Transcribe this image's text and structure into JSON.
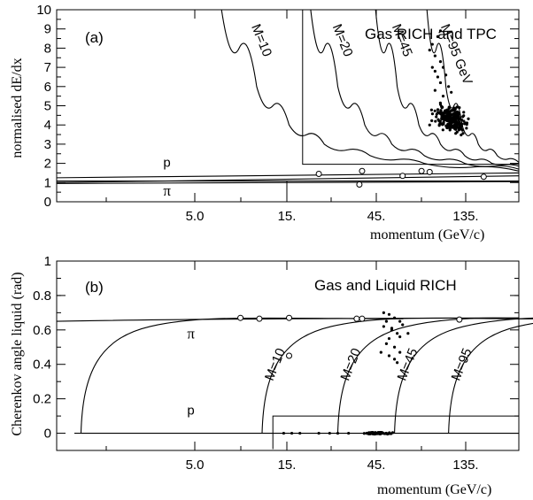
{
  "chart_data": [
    {
      "id": "a",
      "type": "line",
      "panel_label": "(a)",
      "annotation": "Gas RICH and TPC",
      "xlabel": "momentum   (GeV/c)",
      "ylabel": "normalised dE/dx",
      "xlim": [
        -4.1,
        13
      ],
      "ylim": [
        0,
        10
      ],
      "x_ticks": [
        {
          "x": 5,
          "label": "5.0"
        },
        {
          "x": 15,
          "label": "15."
        },
        {
          "x": 45,
          "label": "45."
        },
        {
          "x": 135,
          "label": "135."
        }
      ],
      "y_ticks": [
        {
          "v": 0,
          "label": "0"
        },
        {
          "v": 1,
          "label": "1"
        },
        {
          "v": 2,
          "label": "2"
        },
        {
          "v": 3,
          "label": "3"
        },
        {
          "v": 4,
          "label": "4"
        },
        {
          "v": 5,
          "label": "5"
        },
        {
          "v": 6,
          "label": "6"
        },
        {
          "v": 7,
          "label": "7"
        },
        {
          "v": 8,
          "label": "8"
        },
        {
          "v": 9,
          "label": "9"
        },
        {
          "v": 10,
          "label": "10"
        }
      ],
      "band_labels": [
        {
          "text": "p",
          "x": 0.5,
          "y": 2.0
        },
        {
          "text": "π",
          "x": 0.5,
          "y": 0.5
        }
      ],
      "mass_curves": [
        {
          "label": "M=10",
          "x_at_ymax": 2.0,
          "x_at_y": [
            [
              2.0,
              10
            ],
            [
              3.3,
              6
            ],
            [
              4.5,
              4
            ],
            [
              5.8,
              3
            ],
            [
              7.5,
              2.4
            ],
            [
              9.5,
              2.0
            ],
            [
              13,
              1.6
            ]
          ]
        },
        {
          "label": "M=20",
          "x_at_y": [
            [
              5.3,
              10
            ],
            [
              6.3,
              6
            ],
            [
              7.3,
              4
            ],
            [
              8.3,
              3
            ],
            [
              9.5,
              2.4
            ],
            [
              11,
              2.0
            ],
            [
              13,
              1.7
            ]
          ]
        },
        {
          "label": "M=45",
          "x_at_y": [
            [
              7.7,
              10
            ],
            [
              8.5,
              6
            ],
            [
              9.3,
              4
            ],
            [
              10.1,
              3
            ],
            [
              11,
              2.4
            ],
            [
              12,
              2.0
            ],
            [
              13,
              1.85
            ]
          ]
        },
        {
          "label": "M=95 GeV",
          "x_at_y": [
            [
              9.6,
              10
            ],
            [
              10.3,
              6
            ],
            [
              10.9,
              4
            ],
            [
              11.5,
              3
            ],
            [
              12.2,
              2.4
            ],
            [
              13,
              2.05
            ]
          ]
        }
      ],
      "bands": [
        {
          "name": "p",
          "points": [
            [
              -4.1,
              1.25
            ],
            [
              13,
              1.5
            ]
          ]
        },
        {
          "name": "pi",
          "points": [
            [
              -4.1,
              1.0
            ],
            [
              13,
              1.35
            ]
          ]
        },
        {
          "name": "flat",
          "points": [
            [
              -4.1,
              1.08
            ],
            [
              13,
              1.08
            ]
          ]
        },
        {
          "name": "flat2",
          "points": [
            [
              -4.1,
              0.95
            ],
            [
              13,
              1.05
            ]
          ]
        }
      ],
      "cut_box": {
        "x0": 5.0,
        "x1": 13,
        "y0": 1.95,
        "y1": 10
      },
      "cut_line": {
        "x": 15,
        "y0": 0,
        "y1": 1.08
      },
      "open_points": [
        {
          "x": 5.6,
          "y": 1.45
        },
        {
          "x": 7.2,
          "y": 1.6
        },
        {
          "x": 7.1,
          "y": 0.9
        },
        {
          "x": 8.7,
          "y": 1.35
        },
        {
          "x": 9.4,
          "y": 1.6
        },
        {
          "x": 9.7,
          "y": 1.55
        },
        {
          "x": 11.7,
          "y": 1.3
        }
      ],
      "dense_cluster": {
        "x_center": 10.5,
        "y_center": 4.3,
        "x_spread": 0.55,
        "y_spread": 0.7,
        "count": 230
      },
      "sparse_points": [
        [
          9.8,
          8.2
        ],
        [
          9.7,
          7.9
        ],
        [
          10.0,
          8.6
        ],
        [
          10.1,
          8.9
        ],
        [
          9.9,
          7.6
        ],
        [
          10.1,
          7.3
        ],
        [
          10.2,
          7.0
        ],
        [
          9.9,
          6.8
        ],
        [
          10.0,
          6.5
        ],
        [
          10.3,
          6.6
        ],
        [
          10.1,
          6.2
        ],
        [
          10.4,
          6.0
        ],
        [
          9.9,
          5.8
        ],
        [
          10.5,
          5.7
        ],
        [
          10.2,
          5.5
        ],
        [
          9.7,
          4.0
        ],
        [
          9.8,
          7.0
        ]
      ]
    },
    {
      "id": "b",
      "type": "line",
      "panel_label": "(b)",
      "annotation": "Gas and Liquid RICH",
      "xlabel": "momentum  (GeV/c)",
      "ylabel": "Cherenkov angle liquid  (rad)",
      "xlim": [
        -4.1,
        13
      ],
      "ylim": [
        -0.1,
        1.0
      ],
      "x_ticks": [
        {
          "x": 5,
          "label": "5.0"
        },
        {
          "x": 15,
          "label": "15."
        },
        {
          "x": 45,
          "label": "45."
        },
        {
          "x": 135,
          "label": "135."
        }
      ],
      "y_ticks": [
        {
          "v": 0,
          "label": "0"
        },
        {
          "v": 0.2,
          "label": "0.2"
        },
        {
          "v": 0.4,
          "label": "0.4"
        },
        {
          "v": 0.6,
          "label": "0.6"
        },
        {
          "v": 0.8,
          "label": "0.8"
        },
        {
          "v": 1.0,
          "label": "1"
        }
      ],
      "band_labels": [
        {
          "text": "π",
          "x": 0.4,
          "y": 0.57
        },
        {
          "text": "p",
          "x": 0.4,
          "y": 0.13
        }
      ],
      "mass_curves": [
        {
          "label": "pi",
          "onset": -4.1,
          "onset_y": 0.65
        },
        {
          "label": "p",
          "onset": -3.2,
          "onset_y": 0.0
        },
        {
          "label": "M=10",
          "onset": 3.5,
          "onset_y": 0.0
        },
        {
          "label": "M=20",
          "onset": 6.3,
          "onset_y": 0.0
        },
        {
          "label": "M=45",
          "onset": 8.4,
          "onset_y": 0.0
        },
        {
          "label": "M=95",
          "onset": 10.4,
          "onset_y": 0.0
        }
      ],
      "cut_box": {
        "x0": 3.9,
        "x1": 13,
        "y0": 0.0,
        "y1": 0.1
      },
      "open_points": [
        {
          "x": 2.7,
          "y": 0.67
        },
        {
          "x": 3.4,
          "y": 0.665
        },
        {
          "x": 4.5,
          "y": 0.67
        },
        {
          "x": 4.5,
          "y": 0.45
        },
        {
          "x": 7.0,
          "y": 0.665
        },
        {
          "x": 7.2,
          "y": 0.665
        },
        {
          "x": 10.8,
          "y": 0.66
        }
      ],
      "sparse_points": [
        [
          8.0,
          0.7
        ],
        [
          8.2,
          0.69
        ],
        [
          8.4,
          0.67
        ],
        [
          8.1,
          0.65
        ],
        [
          8.6,
          0.65
        ],
        [
          8.0,
          0.62
        ],
        [
          8.3,
          0.61
        ],
        [
          8.7,
          0.63
        ],
        [
          8.5,
          0.58
        ],
        [
          8.2,
          0.55
        ],
        [
          8.9,
          0.58
        ],
        [
          8.1,
          0.52
        ],
        [
          8.4,
          0.5
        ],
        [
          8.6,
          0.47
        ],
        [
          7.9,
          0.47
        ],
        [
          8.4,
          0.43
        ],
        [
          8.5,
          0.41
        ],
        [
          8.2,
          0.45
        ],
        [
          8.6,
          0.56
        ],
        [
          8.3,
          0.6
        ]
      ],
      "baseline_points": {
        "x_min": 6.2,
        "x_max": 9.4,
        "y": 0.0,
        "count": 55,
        "extra": [
          4.3,
          4.6,
          4.9,
          5.6,
          6.0,
          6.3,
          6.7
        ]
      }
    }
  ]
}
